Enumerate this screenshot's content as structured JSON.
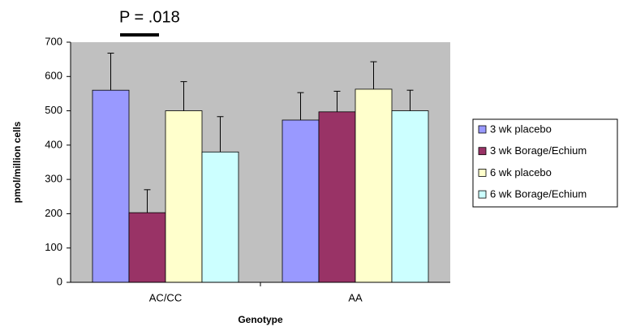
{
  "chart_data": {
    "type": "bar",
    "annotation": "P = .018",
    "x_label": "Genotype",
    "y_label": "pmol/million cells",
    "categories": [
      "AC/CC",
      "AA"
    ],
    "series": [
      {
        "name": "3 wk placebo",
        "color": "#9999ff",
        "values": [
          560,
          473
        ],
        "errors": [
          108,
          80
        ]
      },
      {
        "name": "3 wk Borage/Echium",
        "color": "#993366",
        "values": [
          203,
          497
        ],
        "errors": [
          67,
          60
        ]
      },
      {
        "name": "6 wk placebo",
        "color": "#ffffcc",
        "values": [
          500,
          563
        ],
        "errors": [
          85,
          80
        ]
      },
      {
        "name": "6 wk Borage/Echium",
        "color": "#ccffff",
        "values": [
          380,
          500
        ],
        "errors": [
          103,
          60
        ]
      }
    ],
    "ylim": [
      0,
      700
    ],
    "yticks": [
      0,
      100,
      200,
      300,
      400,
      500,
      600,
      700
    ],
    "grid": false,
    "legend": "right"
  }
}
